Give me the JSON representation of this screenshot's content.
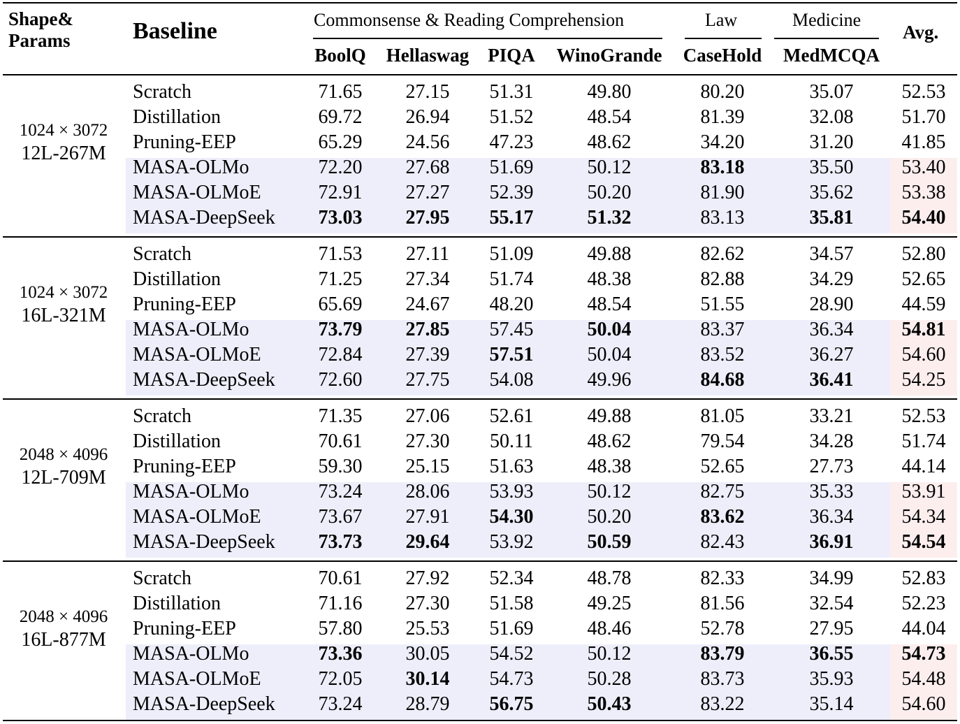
{
  "header": {
    "shape_params": [
      "Shape&",
      "Params"
    ],
    "baseline": "Baseline",
    "group_commonsense": "Commonsense & Reading Comprehension",
    "group_law": "Law",
    "group_medicine": "Medicine",
    "avg": "Avg.",
    "columns": [
      "BoolQ",
      "Hellaswag",
      "PIQA",
      "WinoGrande",
      "CaseHold",
      "MedMCQA"
    ]
  },
  "groups": [
    {
      "dims": "1024 × 3072",
      "layers": "12L-267M",
      "rows": [
        {
          "name": "Scratch",
          "values": [
            "71.65",
            "27.15",
            "51.31",
            "49.80",
            "80.20",
            "35.07",
            "52.53"
          ],
          "bold": [
            false,
            false,
            false,
            false,
            false,
            false,
            false
          ]
        },
        {
          "name": "Distillation",
          "values": [
            "69.72",
            "26.94",
            "51.52",
            "48.54",
            "81.39",
            "32.08",
            "51.70"
          ],
          "bold": [
            false,
            false,
            false,
            false,
            false,
            false,
            false
          ]
        },
        {
          "name": "Pruning-EEP",
          "values": [
            "65.29",
            "24.56",
            "47.23",
            "48.62",
            "34.20",
            "31.20",
            "41.85"
          ],
          "bold": [
            false,
            false,
            false,
            false,
            false,
            false,
            false
          ]
        },
        {
          "name": "MASA-OLMo",
          "values": [
            "72.20",
            "27.68",
            "51.69",
            "50.12",
            "83.18",
            "35.50",
            "53.40"
          ],
          "bold": [
            false,
            false,
            false,
            false,
            true,
            false,
            false
          ]
        },
        {
          "name": "MASA-OLMoE",
          "values": [
            "72.91",
            "27.27",
            "52.39",
            "50.20",
            "81.90",
            "35.62",
            "53.38"
          ],
          "bold": [
            false,
            false,
            false,
            false,
            false,
            false,
            false
          ]
        },
        {
          "name": "MASA-DeepSeek",
          "values": [
            "73.03",
            "27.95",
            "55.17",
            "51.32",
            "83.13",
            "35.81",
            "54.40"
          ],
          "bold": [
            true,
            true,
            true,
            true,
            false,
            true,
            true
          ]
        }
      ]
    },
    {
      "dims": "1024 × 3072",
      "layers": "16L-321M",
      "rows": [
        {
          "name": "Scratch",
          "values": [
            "71.53",
            "27.11",
            "51.09",
            "49.88",
            "82.62",
            "34.57",
            "52.80"
          ],
          "bold": [
            false,
            false,
            false,
            false,
            false,
            false,
            false
          ]
        },
        {
          "name": "Distillation",
          "values": [
            "71.25",
            "27.34",
            "51.74",
            "48.38",
            "82.88",
            "34.29",
            "52.65"
          ],
          "bold": [
            false,
            false,
            false,
            false,
            false,
            false,
            false
          ]
        },
        {
          "name": "Pruning-EEP",
          "values": [
            "65.69",
            "24.67",
            "48.20",
            "48.54",
            "51.55",
            "28.90",
            "44.59"
          ],
          "bold": [
            false,
            false,
            false,
            false,
            false,
            false,
            false
          ]
        },
        {
          "name": "MASA-OLMo",
          "values": [
            "73.79",
            "27.85",
            "57.45",
            "50.04",
            "83.37",
            "36.34",
            "54.81"
          ],
          "bold": [
            true,
            true,
            false,
            true,
            false,
            false,
            true
          ]
        },
        {
          "name": "MASA-OLMoE",
          "values": [
            "72.84",
            "27.39",
            "57.51",
            "50.04",
            "83.52",
            "36.27",
            "54.60"
          ],
          "bold": [
            false,
            false,
            true,
            false,
            false,
            false,
            false
          ]
        },
        {
          "name": "MASA-DeepSeek",
          "values": [
            "72.60",
            "27.75",
            "54.08",
            "49.96",
            "84.68",
            "36.41",
            "54.25"
          ],
          "bold": [
            false,
            false,
            false,
            false,
            true,
            true,
            false
          ]
        }
      ]
    },
    {
      "dims": "2048 × 4096",
      "layers": "12L-709M",
      "rows": [
        {
          "name": "Scratch",
          "values": [
            "71.35",
            "27.06",
            "52.61",
            "49.88",
            "81.05",
            "33.21",
            "52.53"
          ],
          "bold": [
            false,
            false,
            false,
            false,
            false,
            false,
            false
          ]
        },
        {
          "name": "Distillation",
          "values": [
            "70.61",
            "27.30",
            "50.11",
            "48.62",
            "79.54",
            "34.28",
            "51.74"
          ],
          "bold": [
            false,
            false,
            false,
            false,
            false,
            false,
            false
          ]
        },
        {
          "name": "Pruning-EEP",
          "values": [
            "59.30",
            "25.15",
            "51.63",
            "48.38",
            "52.65",
            "27.73",
            "44.14"
          ],
          "bold": [
            false,
            false,
            false,
            false,
            false,
            false,
            false
          ]
        },
        {
          "name": "MASA-OLMo",
          "values": [
            "73.24",
            "28.06",
            "53.93",
            "50.12",
            "82.75",
            "35.33",
            "53.91"
          ],
          "bold": [
            false,
            false,
            false,
            false,
            false,
            false,
            false
          ]
        },
        {
          "name": "MASA-OLMoE",
          "values": [
            "73.67",
            "27.91",
            "54.30",
            "50.20",
            "83.62",
            "36.34",
            "54.34"
          ],
          "bold": [
            false,
            false,
            true,
            false,
            true,
            false,
            false
          ]
        },
        {
          "name": "MASA-DeepSeek",
          "values": [
            "73.73",
            "29.64",
            "53.92",
            "50.59",
            "82.43",
            "36.91",
            "54.54"
          ],
          "bold": [
            true,
            true,
            false,
            true,
            false,
            true,
            true
          ]
        }
      ]
    },
    {
      "dims": "2048 × 4096",
      "layers": "16L-877M",
      "rows": [
        {
          "name": "Scratch",
          "values": [
            "70.61",
            "27.92",
            "52.34",
            "48.78",
            "82.33",
            "34.99",
            "52.83"
          ],
          "bold": [
            false,
            false,
            false,
            false,
            false,
            false,
            false
          ]
        },
        {
          "name": "Distillation",
          "values": [
            "71.16",
            "27.30",
            "51.58",
            "49.25",
            "81.56",
            "32.54",
            "52.23"
          ],
          "bold": [
            false,
            false,
            false,
            false,
            false,
            false,
            false
          ]
        },
        {
          "name": "Pruning-EEP",
          "values": [
            "57.80",
            "25.53",
            "51.69",
            "48.46",
            "52.78",
            "27.95",
            "44.04"
          ],
          "bold": [
            false,
            false,
            false,
            false,
            false,
            false,
            false
          ]
        },
        {
          "name": "MASA-OLMo",
          "values": [
            "73.36",
            "30.05",
            "54.52",
            "50.12",
            "83.79",
            "36.55",
            "54.73"
          ],
          "bold": [
            true,
            false,
            false,
            false,
            true,
            true,
            true
          ]
        },
        {
          "name": "MASA-OLMoE",
          "values": [
            "72.05",
            "30.14",
            "54.73",
            "50.28",
            "83.73",
            "35.93",
            "54.48"
          ],
          "bold": [
            false,
            true,
            false,
            false,
            false,
            false,
            false
          ]
        },
        {
          "name": "MASA-DeepSeek",
          "values": [
            "73.24",
            "28.79",
            "56.75",
            "50.43",
            "83.22",
            "35.14",
            "54.60"
          ],
          "bold": [
            false,
            false,
            true,
            true,
            false,
            false,
            false
          ]
        }
      ]
    }
  ]
}
